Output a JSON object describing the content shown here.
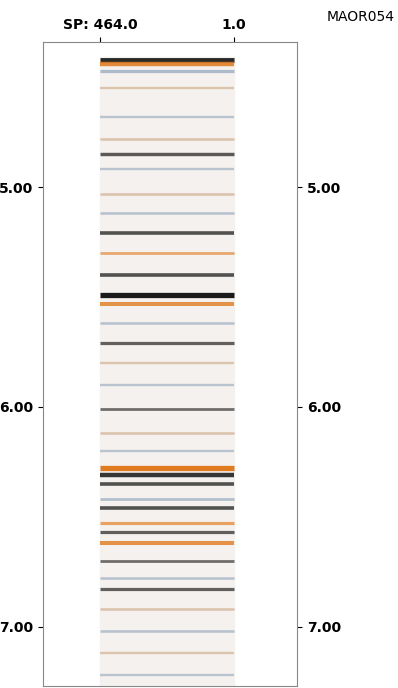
{
  "chart_data": {
    "type": "seismic",
    "title": "MAOR054",
    "xlim": [
      661,
      -217
    ],
    "xticks": [
      {
        "value": 464,
        "label": "SP: 464.0"
      },
      {
        "value": 1,
        "label": "1.0"
      }
    ],
    "ylim": [
      7.27,
      4.34
    ],
    "yticks": [
      {
        "value": 5,
        "label": "5.00"
      },
      {
        "value": 6,
        "label": "6.00"
      },
      {
        "value": 7,
        "label": "7.00"
      }
    ],
    "trace_range": [
      464,
      1
    ],
    "time_range": [
      4.41,
      7.27
    ],
    "tick_labels": true,
    "grid": false,
    "reflectors": [
      {
        "time": 4.42,
        "amplitude": 0.9,
        "color": "#1a1a1a"
      },
      {
        "time": 4.44,
        "amplitude": 0.8,
        "color": "#e07b20"
      },
      {
        "time": 4.47,
        "amplitude": 0.5,
        "color": "#8aa0b8"
      },
      {
        "time": 4.55,
        "amplitude": 0.3,
        "color": "#c8a07a"
      },
      {
        "time": 4.68,
        "amplitude": 0.3,
        "color": "#8aa0b8"
      },
      {
        "time": 4.78,
        "amplitude": 0.35,
        "color": "#c8a07a"
      },
      {
        "time": 4.85,
        "amplitude": 0.55,
        "color": "#1a1a1a"
      },
      {
        "time": 4.92,
        "amplitude": 0.3,
        "color": "#8aa0b8"
      },
      {
        "time": 5.03,
        "amplitude": 0.35,
        "color": "#c8a07a"
      },
      {
        "time": 5.12,
        "amplitude": 0.35,
        "color": "#8aa0b8"
      },
      {
        "time": 5.21,
        "amplitude": 0.6,
        "color": "#1a1a1a"
      },
      {
        "time": 5.3,
        "amplitude": 0.4,
        "color": "#e07b20"
      },
      {
        "time": 5.4,
        "amplitude": 0.6,
        "color": "#1a1a1a"
      },
      {
        "time": 5.49,
        "amplitude": 1.0,
        "color": "#1a1a1a"
      },
      {
        "time": 5.53,
        "amplitude": 0.7,
        "color": "#e07b20"
      },
      {
        "time": 5.62,
        "amplitude": 0.35,
        "color": "#8aa0b8"
      },
      {
        "time": 5.71,
        "amplitude": 0.5,
        "color": "#1a1a1a"
      },
      {
        "time": 5.8,
        "amplitude": 0.3,
        "color": "#c8a07a"
      },
      {
        "time": 5.9,
        "amplitude": 0.3,
        "color": "#8aa0b8"
      },
      {
        "time": 6.01,
        "amplitude": 0.4,
        "color": "#1a1a1a"
      },
      {
        "time": 6.12,
        "amplitude": 0.35,
        "color": "#c8a07a"
      },
      {
        "time": 6.2,
        "amplitude": 0.3,
        "color": "#8aa0b8"
      },
      {
        "time": 6.28,
        "amplitude": 1.0,
        "color": "#e07b20"
      },
      {
        "time": 6.31,
        "amplitude": 0.8,
        "color": "#1a1a1a"
      },
      {
        "time": 6.35,
        "amplitude": 0.6,
        "color": "#1a1a1a"
      },
      {
        "time": 6.42,
        "amplitude": 0.4,
        "color": "#8aa0b8"
      },
      {
        "time": 6.46,
        "amplitude": 0.6,
        "color": "#1a1a1a"
      },
      {
        "time": 6.53,
        "amplitude": 0.5,
        "color": "#e07b20"
      },
      {
        "time": 6.57,
        "amplitude": 0.5,
        "color": "#1a1a1a"
      },
      {
        "time": 6.62,
        "amplitude": 0.7,
        "color": "#e07b20"
      },
      {
        "time": 6.7,
        "amplitude": 0.4,
        "color": "#1a1a1a"
      },
      {
        "time": 6.78,
        "amplitude": 0.35,
        "color": "#8aa0b8"
      },
      {
        "time": 6.83,
        "amplitude": 0.5,
        "color": "#1a1a1a"
      },
      {
        "time": 6.92,
        "amplitude": 0.35,
        "color": "#c8a07a"
      },
      {
        "time": 7.02,
        "amplitude": 0.35,
        "color": "#8aa0b8"
      },
      {
        "time": 7.12,
        "amplitude": 0.3,
        "color": "#c8a07a"
      },
      {
        "time": 7.22,
        "amplitude": 0.3,
        "color": "#8aa0b8"
      }
    ]
  }
}
